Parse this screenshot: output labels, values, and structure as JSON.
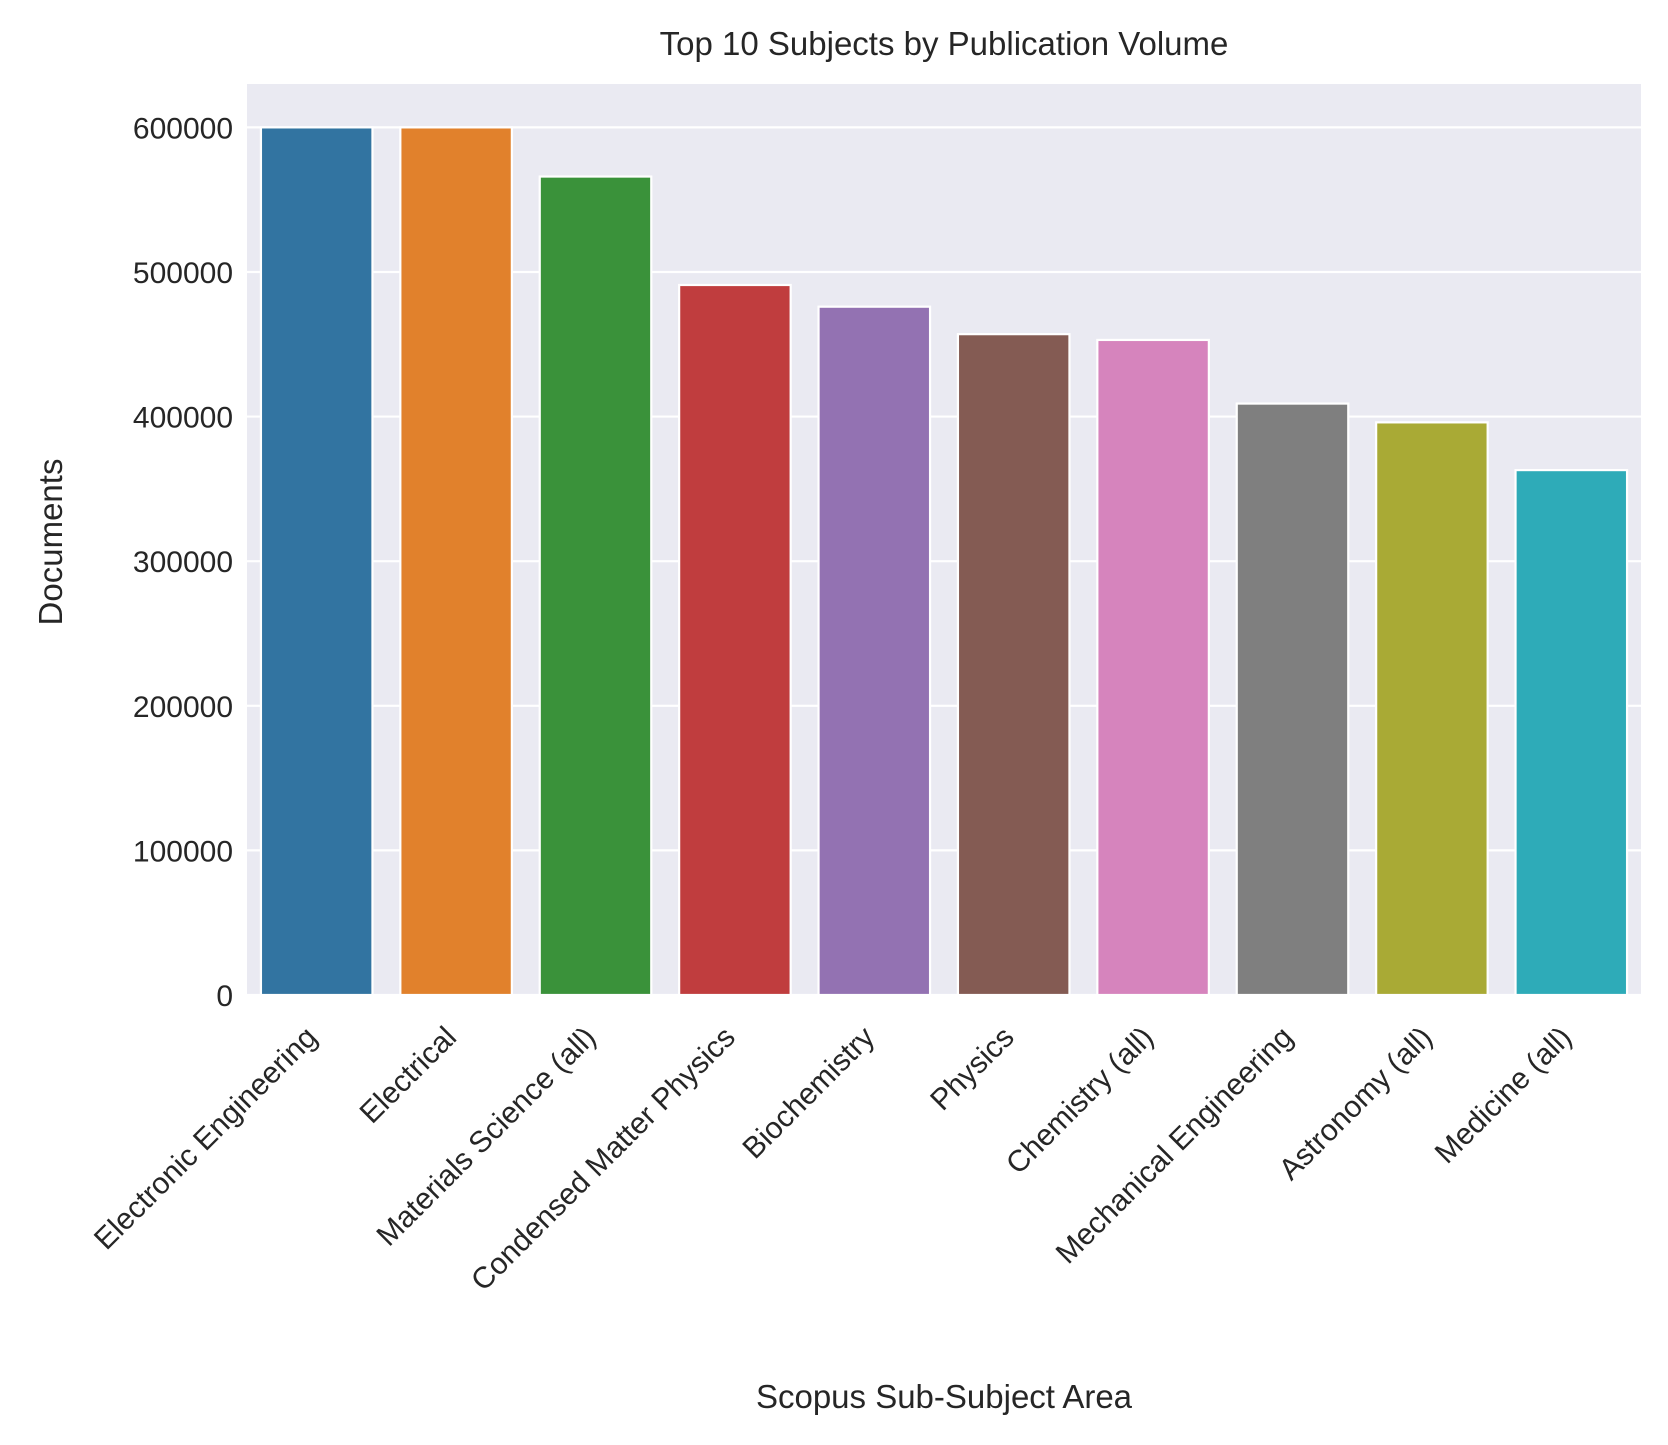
{
  "chart_data": {
    "type": "bar",
    "title": "Top 10 Subjects by Publication Volume",
    "xlabel": "Scopus Sub-Subject Area",
    "ylabel": "Documents",
    "categories": [
      "Electronic Engineering",
      "Electrical",
      "Materials Science (all)",
      "Condensed Matter Physics",
      "Biochemistry",
      "Physics",
      "Chemistry (all)",
      "Mechanical Engineering",
      "Astronomy (all)",
      "Medicine (all)"
    ],
    "values": [
      600000,
      600000,
      566000,
      491000,
      476000,
      457000,
      453000,
      409000,
      396000,
      363000
    ],
    "colors": [
      "#3274a1",
      "#e1812c",
      "#3a923a",
      "#c03d3e",
      "#9372b2",
      "#845b53",
      "#d684bd",
      "#7f7f7f",
      "#a9aa35",
      "#2eabb8"
    ],
    "ylim": [
      0,
      630000
    ],
    "yticks": [
      0,
      100000,
      200000,
      300000,
      400000,
      500000,
      600000
    ],
    "ytick_labels": [
      "0",
      "100000",
      "200000",
      "300000",
      "400000",
      "500000",
      "600000"
    ],
    "grid": true,
    "background": "#eaeaf2",
    "grid_color": "#ffffff"
  }
}
